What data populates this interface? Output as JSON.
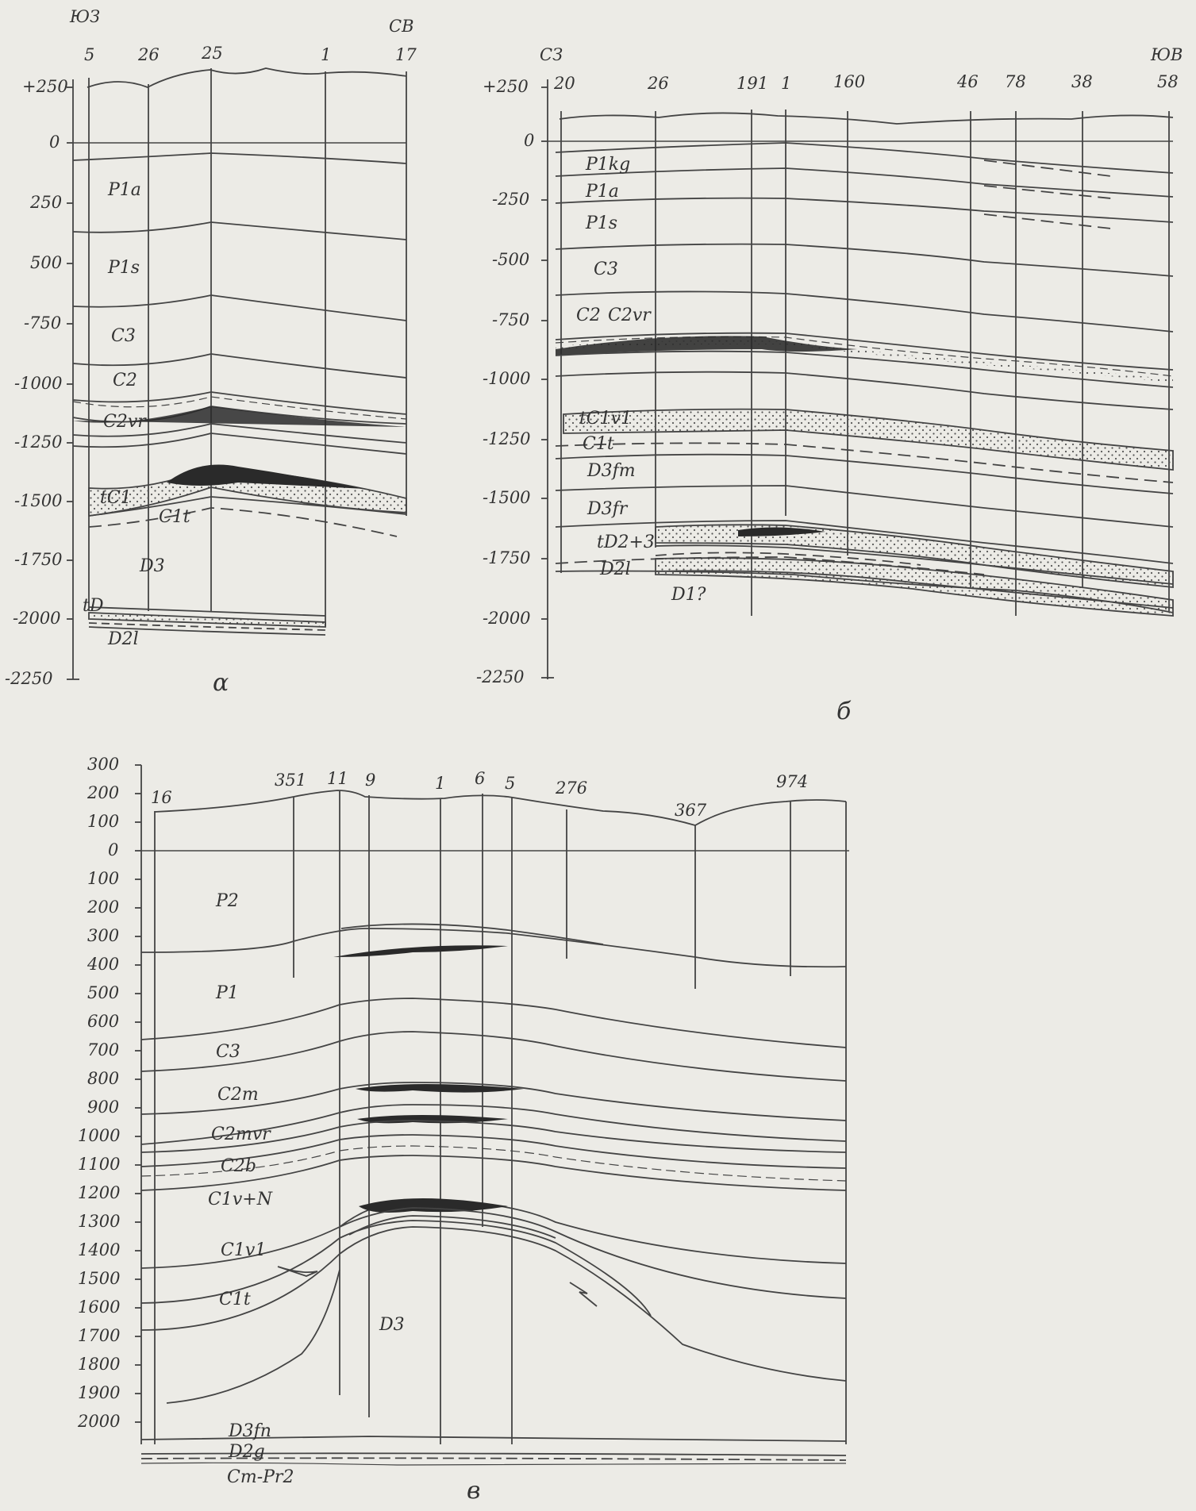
{
  "panels": [
    {
      "id": "a",
      "caption": "α",
      "dir_left": "ЮЗ",
      "dir_right": "СВ",
      "y_axis": [
        "+250",
        "0",
        "250",
        "500",
        "-750",
        "-1000",
        "-1250",
        "-1500",
        "-1750",
        "-2000",
        "-2250"
      ],
      "wells": [
        "5",
        "26",
        "25",
        "1",
        "17"
      ],
      "units": [
        "P1a",
        "P1s",
        "C3",
        "C2",
        "C2vr",
        "tC1",
        "C1t",
        "D3",
        "tD",
        "D2l"
      ]
    },
    {
      "id": "b",
      "caption": "б",
      "dir_left": "СЗ",
      "dir_right": "ЮВ",
      "y_axis": [
        "+250",
        "0",
        "-250",
        "-500",
        "-750",
        "-1000",
        "-1250",
        "-1500",
        "-1750",
        "-2000",
        "-2250"
      ],
      "wells": [
        "20",
        "26",
        "191",
        "1",
        "160",
        "46",
        "78",
        "38",
        "58"
      ],
      "units": [
        "P1kg",
        "P1a",
        "P1s",
        "C3",
        "C2",
        "C2vr",
        "tC1v1",
        "C1t",
        "D3fm",
        "D3fr",
        "tD2+3",
        "D2l",
        "D1?"
      ]
    },
    {
      "id": "c",
      "caption": "в",
      "y_axis": [
        "300",
        "200",
        "100",
        "0",
        "100",
        "200",
        "300",
        "400",
        "500",
        "600",
        "700",
        "800",
        "900",
        "1000",
        "1100",
        "1200",
        "1300",
        "1400",
        "1500",
        "1600",
        "1700",
        "1800",
        "1900",
        "2000"
      ],
      "wells": [
        "16",
        "351",
        "11",
        "9",
        "1",
        "6",
        "5",
        "276",
        "367",
        "974"
      ],
      "units": [
        "P2",
        "P1",
        "C3",
        "C2m",
        "C2mvr",
        "C2b",
        "C1v+N",
        "C1v1",
        "C1t",
        "D3",
        "D3fn",
        "D2g",
        "Cm-Pr2"
      ]
    }
  ]
}
